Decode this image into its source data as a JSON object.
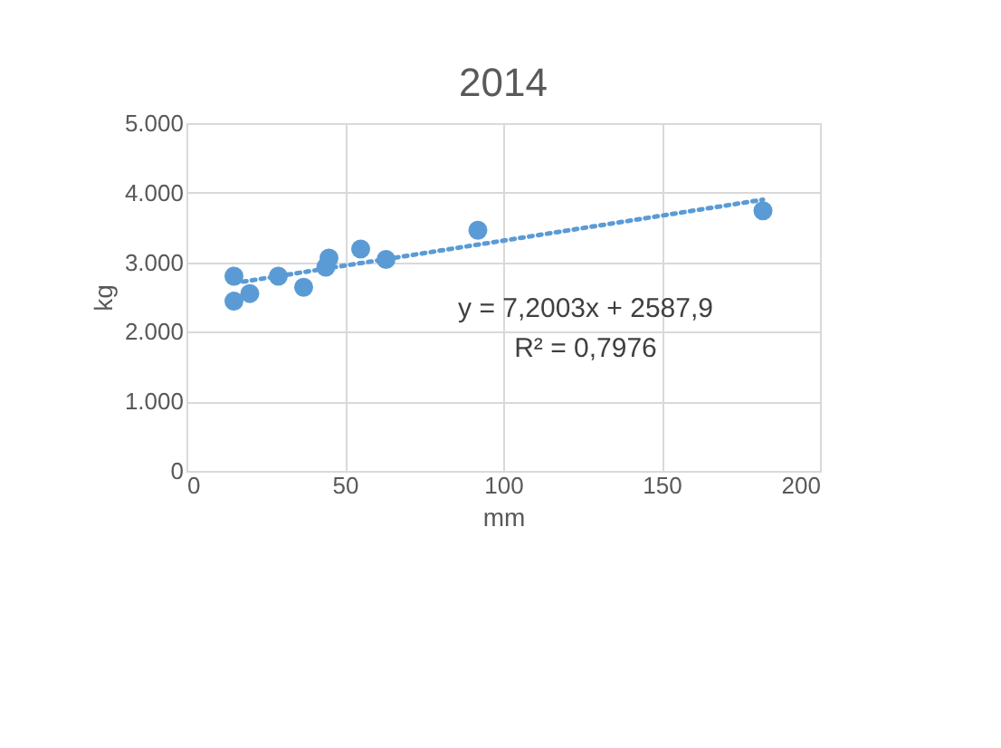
{
  "chart_data": {
    "type": "scatter",
    "title": "2014",
    "xlabel": "mm",
    "ylabel": "kg",
    "xlim": [
      0,
      200
    ],
    "xticks": [
      0,
      50,
      100,
      150,
      200
    ],
    "ylim": [
      0,
      5000
    ],
    "yticks": [
      {
        "value": 0,
        "label": "0"
      },
      {
        "value": 1000,
        "label": "1.000"
      },
      {
        "value": 2000,
        "label": "2.000"
      },
      {
        "value": 3000,
        "label": "3.000"
      },
      {
        "value": 4000,
        "label": "4.000"
      },
      {
        "value": 5000,
        "label": "5.000"
      }
    ],
    "grid": true,
    "marker": "circle",
    "series": [
      {
        "color": "#5b9bd5",
        "x": [
          15,
          15,
          20,
          29,
          37,
          44,
          45,
          55,
          63,
          92,
          182
        ],
        "values": [
          2440,
          2800,
          2550,
          2800,
          2640,
          2930,
          3060,
          3190,
          3040,
          3460,
          3740
        ]
      },
      {
        "type": "line",
        "color": "#5b9bd5",
        "line_style": "dotted",
        "marker": "none",
        "x": [
          15,
          182
        ],
        "values": [
          2700,
          3900
        ]
      }
    ],
    "annotations": [
      "y = 7,2003x + 2587,9",
      "R² = 0,7976"
    ]
  }
}
